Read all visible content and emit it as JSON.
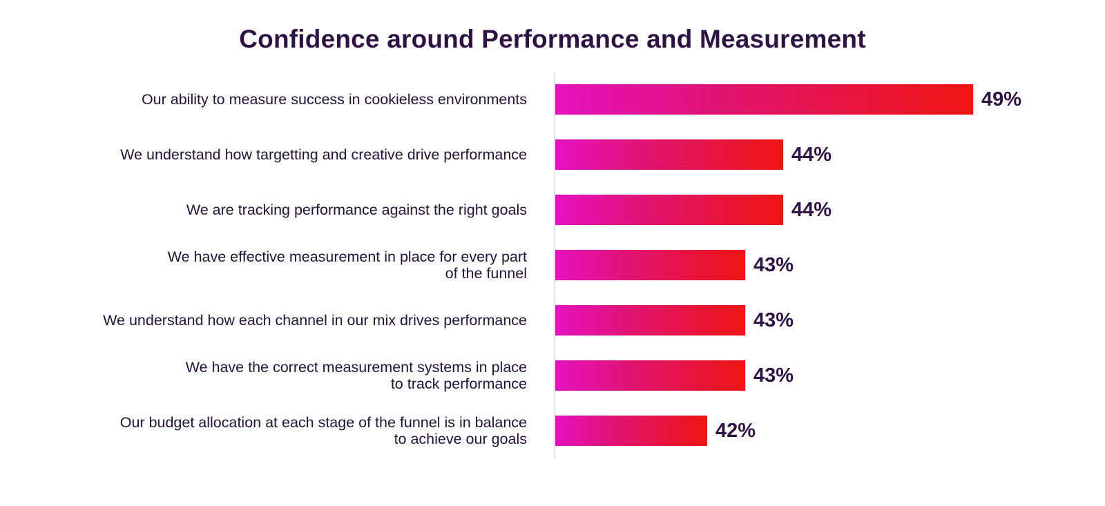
{
  "title": "Confidence around Performance and Measurement",
  "colors": {
    "title_text": "#2d1243",
    "label_text": "#241238",
    "value_text": "#2d1243",
    "bar_gradient_start": "#e612c0",
    "bar_gradient_end": "#ee1511",
    "axis_line": "#c6c4c9",
    "background": "#ffffff"
  },
  "chart_data": {
    "type": "bar",
    "orientation": "horizontal",
    "title": "Confidence around Performance and Measurement",
    "categories": [
      "Our ability to measure success in  cookieless environments",
      "We understand how targetting and creative drive performance",
      "We are tracking performance against the right goals",
      "We have effective measurement in place for every part\nof the funnel",
      "We understand how each channel in our mix drives performance",
      "We have the correct measurement systems in place\nto track performance",
      "Our budget allocation at each stage of the funnel is in balance\nto achieve our goals"
    ],
    "values": [
      49,
      44,
      44,
      43,
      43,
      43,
      42
    ],
    "value_labels": [
      "49%",
      "44%",
      "44%",
      "43%",
      "43%",
      "43%",
      "42%"
    ],
    "xlabel": "",
    "ylabel": "",
    "xlim": [
      38,
      50
    ],
    "axis_truncated": true,
    "grid": false,
    "legend": "none",
    "data_labels": "outside-end"
  }
}
